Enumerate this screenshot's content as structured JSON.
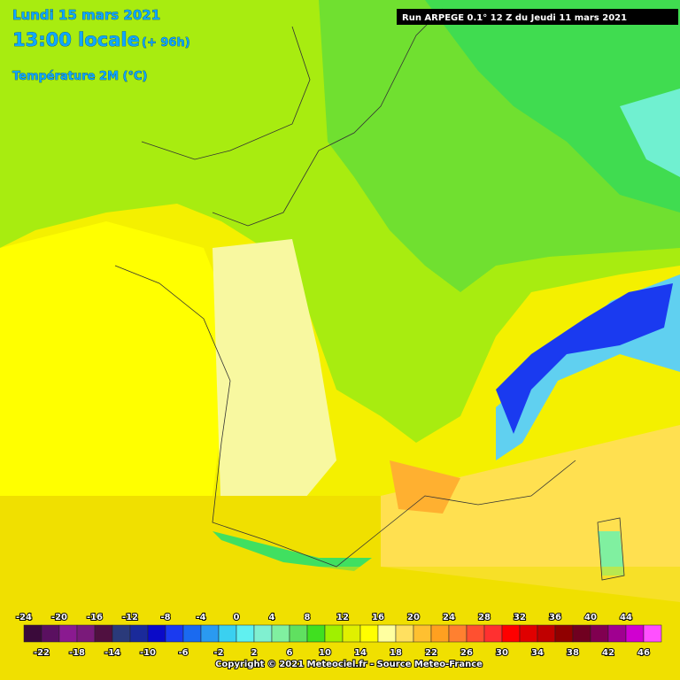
{
  "header": {
    "date": "Lundi 15 mars 2021",
    "time": "13:00 locale",
    "lead": "(+ 96h)",
    "variable": "Température 2M (°C)",
    "run": "Run ARPEGE 0.1° 12 Z du Jeudi 11 mars 2021"
  },
  "legend": {
    "labels": [
      -24,
      -22,
      -20,
      -18,
      -16,
      -14,
      -12,
      -10,
      -8,
      -6,
      -4,
      -2,
      0,
      2,
      4,
      6,
      8,
      10,
      12,
      14,
      16,
      18,
      20,
      22,
      24,
      26,
      28,
      30,
      32,
      34,
      36,
      38,
      40,
      42,
      44,
      46
    ],
    "colors": [
      "#3a0a3a",
      "#5a1060",
      "#8a1a90",
      "#7a1a7a",
      "#501040",
      "#2a3a7a",
      "#1a2a9a",
      "#0a0ac8",
      "#1a3af0",
      "#1a6af0",
      "#2a9af0",
      "#3ad0f0",
      "#60f0f0",
      "#80f0d0",
      "#80f0a0",
      "#60e060",
      "#40e020",
      "#a0f000",
      "#e0f000",
      "#ffff00",
      "#ffffa0",
      "#ffe060",
      "#ffc030",
      "#ffa020",
      "#ff8030",
      "#ff5030",
      "#ff3030",
      "#ff0000",
      "#e00000",
      "#c00000",
      "#900000",
      "#700020",
      "#800050",
      "#a00090",
      "#d000d0",
      "#ff50ff"
    ]
  },
  "footer": {
    "copyright": "Copyright © 2021 Meteociel.fr - Source Meteo-France"
  }
}
